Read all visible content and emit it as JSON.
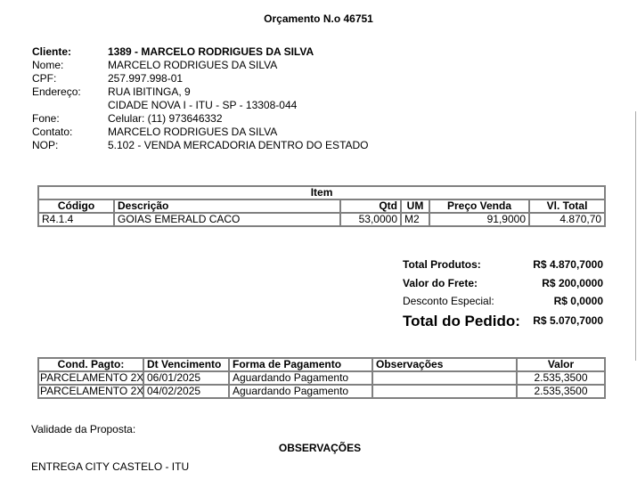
{
  "title": "Orçamento N.o 46751",
  "client": {
    "cliente_label": "Cliente:",
    "cliente": "1389 - MARCELO RODRIGUES DA SILVA",
    "nome_label": "Nome:",
    "nome": "MARCELO RODRIGUES DA SILVA",
    "cpf_label": "CPF:",
    "cpf": "257.997.998-01",
    "endereco_label": "Endereço:",
    "endereco1": "RUA IBITINGA, 9",
    "endereco2": "CIDADE NOVA I - ITU - SP - 13308-044",
    "fone_label": "Fone:",
    "fone": "Celular: (11) 973646332",
    "contato_label": "Contato:",
    "contato": "MARCELO RODRIGUES DA SILVA",
    "nop_label": "NOP:",
    "nop": "5.102 - VENDA MERCADORIA DENTRO DO ESTADO"
  },
  "items": {
    "caption": "Item",
    "headers": [
      "Código",
      "Descrição",
      "Qtd",
      "UM",
      "Preço Venda",
      "Vl. Total"
    ],
    "rows": [
      [
        "R4.1.4",
        "GOIAS EMERALD CACO",
        "53,0000",
        "M2",
        "91,9000",
        "4.870,70"
      ]
    ]
  },
  "totals": {
    "produtos_label": "Total Produtos:",
    "produtos": "R$ 4.870,7000",
    "frete_label": "Valor do Frete:",
    "frete": "R$ 200,0000",
    "desconto_label": "Desconto Especial:",
    "desconto": "R$ 0,0000",
    "pedido_label": "Total do Pedido:",
    "pedido": "R$ 5.070,7000"
  },
  "payments": {
    "headers": [
      "Cond. Pagto:",
      "Dt Vencimento",
      "Forma de Pagamento",
      "Observações",
      "Valor"
    ],
    "rows": [
      [
        "PARCELAMENTO 2X",
        "06/01/2025",
        "Aguardando Pagamento",
        "",
        "2.535,3500"
      ],
      [
        "PARCELAMENTO 2X",
        "04/02/2025",
        "Aguardando Pagamento",
        "",
        "2.535,3500"
      ]
    ]
  },
  "validade_label": "Validade da Proposta:",
  "observacoes_title": "OBSERVAÇÕES",
  "observacoes_text": "ENTREGA CITY CASTELO - ITU"
}
